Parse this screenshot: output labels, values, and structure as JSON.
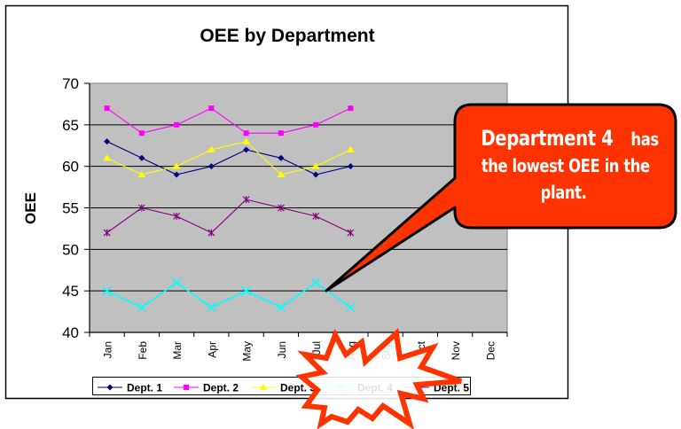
{
  "chart_data": {
    "type": "line",
    "title": "OEE by Department",
    "xlabel": "",
    "ylabel": "OEE",
    "ylim": [
      40,
      70
    ],
    "yticks": [
      40,
      45,
      50,
      55,
      60,
      65,
      70
    ],
    "grid": true,
    "legend_position": "bottom",
    "categories": [
      "Jan",
      "Feb",
      "Mar",
      "Apr",
      "May",
      "Jun",
      "Jul",
      "Aug",
      "Sep",
      "Oct",
      "Nov",
      "Dec"
    ],
    "series": [
      {
        "name": "Dept. 1",
        "color": "#000080",
        "marker": "diamond",
        "values": [
          63,
          61,
          59,
          60,
          62,
          61,
          59,
          60,
          null,
          null,
          null,
          null
        ]
      },
      {
        "name": "Dept. 2",
        "color": "#ff00ff",
        "marker": "square",
        "values": [
          67,
          64,
          65,
          67,
          64,
          64,
          65,
          67,
          null,
          null,
          null,
          null
        ]
      },
      {
        "name": "Dept. 3",
        "color": "#ffff00",
        "marker": "triangle",
        "values": [
          61,
          59,
          60,
          62,
          63,
          59,
          60,
          62,
          null,
          null,
          null,
          null
        ]
      },
      {
        "name": "Dept. 4",
        "color": "#00ffff",
        "marker": "x",
        "values": [
          45,
          43,
          46,
          43,
          45,
          43,
          46,
          43,
          null,
          null,
          null,
          null
        ]
      },
      {
        "name": "Dept. 5",
        "color": "#800080",
        "marker": "star",
        "values": [
          52,
          55,
          54,
          52,
          56,
          55,
          54,
          52,
          null,
          null,
          null,
          null
        ]
      }
    ],
    "annotations": [
      {
        "type": "callout",
        "text": "Department 4 has the lowest OEE in the plant.",
        "points_to": {
          "series": "Dept. 4",
          "category": "Jul"
        }
      },
      {
        "type": "starburst",
        "near": "legend Dept. 4"
      }
    ]
  },
  "callout": {
    "line1_big": "Department 4",
    "line1_small": " has",
    "line2": "the lowest OEE in the",
    "line3": "plant."
  },
  "colors": {
    "plot_bg": "#c0c0c0",
    "callout_fill": "#ff3300",
    "starburst": "#ff3300"
  }
}
